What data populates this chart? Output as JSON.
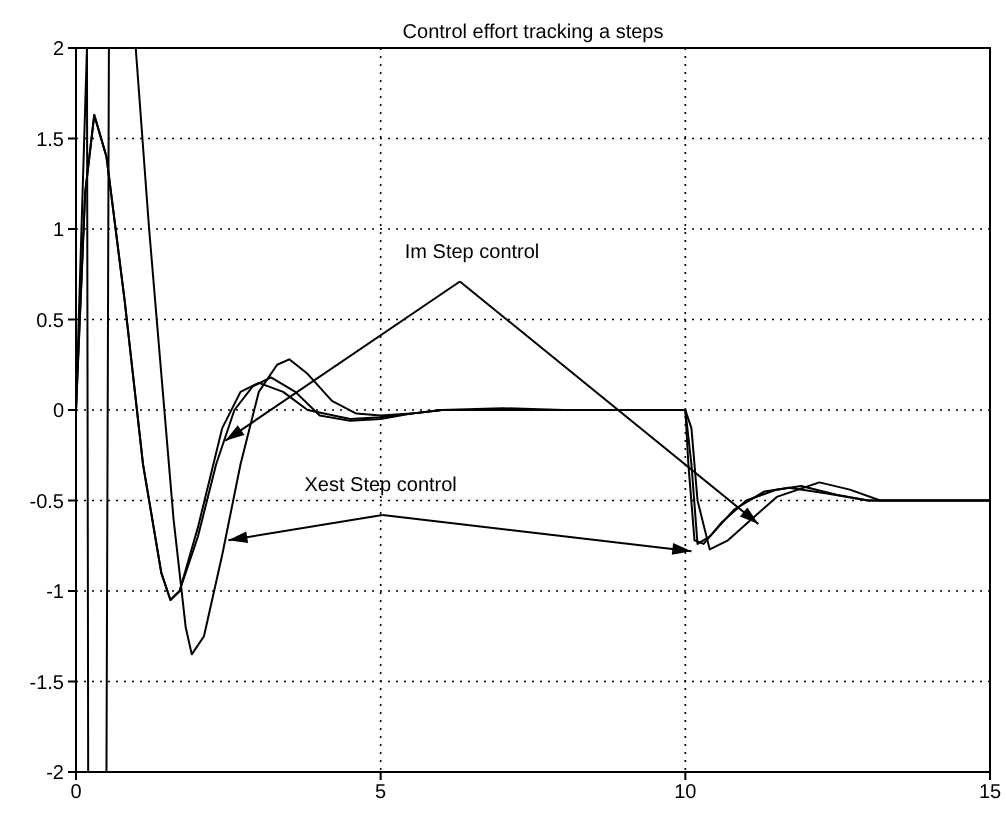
{
  "chart_data": {
    "type": "line",
    "title": "Control effort tracking a steps",
    "annotations": [
      {
        "text": "Im Step control",
        "x": 2.45,
        "y": -0.17
      },
      {
        "text": "Xest Step control",
        "x": 2.5,
        "y": -0.72
      }
    ],
    "series": [
      {
        "color": "#000000",
        "x": [
          0,
          0.18,
          0.2,
          0.5,
          0.54,
          0.98,
          1.2,
          1.4,
          1.6,
          1.8,
          1.9,
          2.1,
          2.4,
          2.7,
          3.0,
          3.3,
          3.5,
          3.8,
          4.2,
          4.6,
          5,
          5.5,
          6,
          7,
          8,
          10,
          10.1,
          10.2,
          10.4,
          10.7,
          11.1,
          11.5,
          12.2,
          12.7,
          13.2,
          14,
          15
        ],
        "values": [
          0,
          2,
          -2,
          -2,
          2,
          2,
          1.0,
          0.2,
          -0.6,
          -1.2,
          -1.35,
          -1.25,
          -0.8,
          -0.3,
          0.1,
          0.25,
          0.28,
          0.2,
          0.05,
          -0.02,
          -0.03,
          -0.02,
          0,
          0.01,
          0,
          0,
          -0.1,
          -0.5,
          -0.77,
          -0.72,
          -0.6,
          -0.48,
          -0.4,
          -0.44,
          -0.5,
          -0.5,
          -0.5
        ]
      },
      {
        "color": "#000000",
        "x": [
          0,
          0.15,
          0.3,
          0.5,
          0.8,
          1.1,
          1.4,
          1.55,
          1.7,
          2.0,
          2.3,
          2.6,
          2.9,
          3.2,
          3.6,
          4.0,
          4.5,
          5,
          5.5,
          6,
          8,
          10,
          10.1,
          10.2,
          10.4,
          10.8,
          11.3,
          11.7,
          12.3,
          13,
          15
        ],
        "values": [
          0,
          1.2,
          1.63,
          1.4,
          0.6,
          -0.3,
          -0.9,
          -1.05,
          -1.0,
          -0.7,
          -0.3,
          0.0,
          0.13,
          0.18,
          0.1,
          -0.03,
          -0.06,
          -0.05,
          -0.02,
          0,
          0,
          0,
          -0.3,
          -0.74,
          -0.7,
          -0.55,
          -0.45,
          -0.43,
          -0.46,
          -0.5,
          -0.5
        ]
      },
      {
        "color": "#000000",
        "x": [
          0,
          0.15,
          0.3,
          0.5,
          0.8,
          1.1,
          1.4,
          1.55,
          1.7,
          2.0,
          2.4,
          2.7,
          3.0,
          3.4,
          3.8,
          4.5,
          5,
          5.5,
          6,
          8,
          10,
          10.05,
          10.15,
          10.3,
          10.6,
          11.0,
          11.5,
          11.9,
          12.5,
          13,
          15
        ],
        "values": [
          0,
          1.2,
          1.63,
          1.4,
          0.6,
          -0.3,
          -0.9,
          -1.05,
          -1.0,
          -0.65,
          -0.1,
          0.1,
          0.15,
          0.1,
          0,
          -0.05,
          -0.04,
          -0.02,
          0,
          0,
          0,
          -0.3,
          -0.72,
          -0.74,
          -0.62,
          -0.5,
          -0.44,
          -0.42,
          -0.47,
          -0.5,
          -0.5
        ]
      }
    ],
    "xlim": [
      0,
      15
    ],
    "xticks": [
      0,
      5,
      10,
      15
    ],
    "ylim": [
      -2,
      2
    ],
    "yticks": [
      -2,
      -1.5,
      -1,
      -0.5,
      0,
      0.5,
      1,
      1.5,
      2
    ],
    "grid": true,
    "marker": "none",
    "line_style": "solid"
  }
}
